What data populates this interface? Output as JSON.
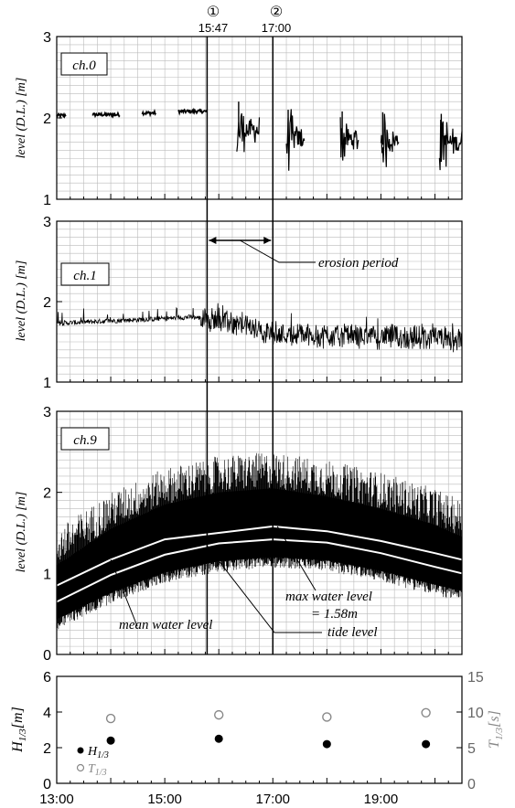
{
  "figure": {
    "chart_data": [
      {
        "type": "line",
        "panel_label": "ch.0",
        "ylabel": "level (D.L.) [m]",
        "ylim": [
          1,
          3
        ],
        "yticks": [
          "1",
          "2",
          "3"
        ],
        "xlim": [
          "13:00",
          "20:30"
        ],
        "grid": true,
        "series": [
          {
            "segments": [
              {
                "start": "13:00",
                "end": "13:10",
                "level": 2.03
              },
              {
                "start": "13:40",
                "end": "14:10",
                "level": 2.04
              },
              {
                "start": "14:35",
                "end": "14:50",
                "level": 2.06
              },
              {
                "start": "15:15",
                "end": "15:47",
                "level": 2.08
              },
              {
                "start": "16:20",
                "end": "16:45",
                "level": 1.85
              },
              {
                "start": "17:15",
                "end": "17:35",
                "level": 1.75
              },
              {
                "start": "18:15",
                "end": "18:35",
                "level": 1.73
              },
              {
                "start": "19:00",
                "end": "19:20",
                "level": 1.72
              },
              {
                "start": "20:05",
                "end": "20:30",
                "level": 1.7
              }
            ]
          }
        ]
      },
      {
        "type": "line",
        "panel_label": "ch.1",
        "ylabel": "level (D.L.) [m]",
        "ylim": [
          1,
          3
        ],
        "yticks": [
          "1",
          "2",
          "3"
        ],
        "xlim": [
          "13:00",
          "20:30"
        ],
        "grid": true,
        "series": [
          {
            "x": [
              "13:00",
              "14:00",
              "15:00",
              "15:30",
              "16:00",
              "16:30",
              "17:00",
              "18:00",
              "19:00",
              "20:00",
              "20:30"
            ],
            "y": [
              1.73,
              1.76,
              1.79,
              1.81,
              1.77,
              1.7,
              1.6,
              1.58,
              1.57,
              1.54,
              1.53
            ]
          }
        ],
        "annotations": [
          "erosion period"
        ]
      },
      {
        "type": "line",
        "panel_label": "ch.9",
        "ylabel": "level (D.L.) [m]",
        "ylim": [
          0,
          3
        ],
        "yticks": [
          "0",
          "1",
          "2",
          "3"
        ],
        "xlim": [
          "13:00",
          "20:30"
        ],
        "grid": true,
        "series": [
          {
            "name": "mean water level",
            "x": [
              "13:00",
              "14:00",
              "15:00",
              "16:00",
              "17:00",
              "17:30",
              "18:00",
              "19:00",
              "20:00",
              "20:30"
            ],
            "y": [
              0.85,
              1.17,
              1.42,
              1.5,
              1.58,
              1.55,
              1.52,
              1.4,
              1.25,
              1.17
            ]
          },
          {
            "name": "tide level",
            "x": [
              "13:00",
              "14:00",
              "15:00",
              "16:00",
              "17:00",
              "18:00",
              "19:00",
              "20:00",
              "20:30"
            ],
            "y": [
              0.65,
              0.98,
              1.23,
              1.37,
              1.42,
              1.38,
              1.25,
              1.08,
              1.0
            ]
          },
          {
            "x": [
              "13:00",
              "14:00",
              "15:00",
              "16:00",
              "17:00",
              "18:00",
              "19:00",
              "20:00",
              "20:30"
            ],
            "y": [
              1.1,
              1.55,
              1.85,
              2.0,
              2.05,
              1.95,
              1.8,
              1.6,
              1.45
            ]
          }
        ],
        "annotations": [
          "mean water level",
          "max water level",
          "= 1.58m",
          "tide level"
        ]
      },
      {
        "type": "scatter",
        "xlabel": "",
        "ylabel": "H_1/3 [m]",
        "ylabel_right": "T_1/3 [s]",
        "ylim": [
          0,
          6
        ],
        "ylim_right": [
          0,
          15
        ],
        "yticks": [
          "0",
          "2",
          "4",
          "6"
        ],
        "yticks_right": [
          "0",
          "5",
          "10",
          "15"
        ],
        "xticks": [
          "13:00",
          "15:00",
          "17:00",
          "19:00"
        ],
        "xlim": [
          "13:00",
          "20:30"
        ],
        "grid": false,
        "series": [
          {
            "name": "H_1/3",
            "x": [
              "14:00",
              "16:00",
              "18:00",
              "19:50"
            ],
            "y": [
              2.4,
              2.5,
              2.2,
              2.2
            ]
          },
          {
            "name": "T_1/3",
            "x": [
              "14:00",
              "16:00",
              "18:00",
              "19:50"
            ],
            "y": [
              9.1,
              9.6,
              9.3,
              9.9
            ]
          }
        ]
      }
    ],
    "markers": [
      {
        "num": "①",
        "time": "15:47"
      },
      {
        "num": "②",
        "time": "17:00"
      }
    ],
    "legend": {
      "h": "H",
      "h_sub": "1/3",
      "t": "T",
      "t_sub": "1/3"
    },
    "axis_left_main": "H",
    "axis_left_sub": "1/3",
    "axis_left_unit": "[m]",
    "axis_right_main": "T",
    "axis_right_sub": "1/3",
    "axis_right_unit": "[s]",
    "colors": {
      "data": "#000000",
      "grid": "#bbbbbb",
      "T_marker": "#888888",
      "tide_line": "#ffffff"
    }
  }
}
